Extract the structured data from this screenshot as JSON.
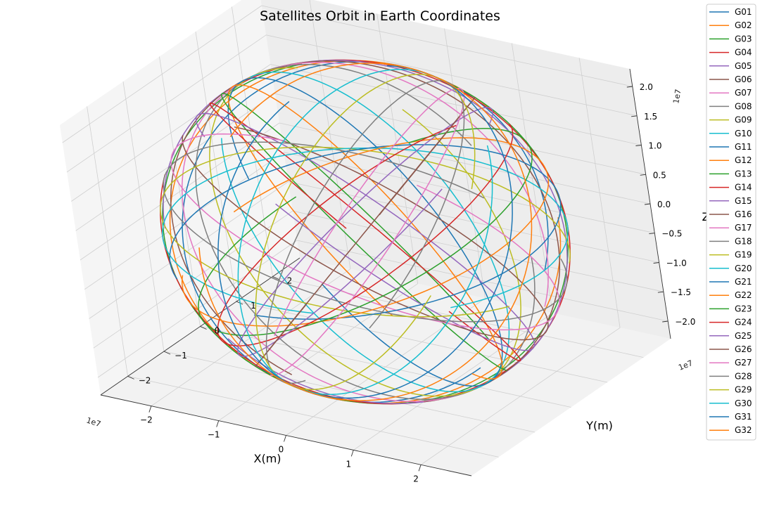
{
  "chart_data": {
    "type": "line",
    "projection": "3d",
    "title": "Satellites Orbit in Earth Coordinates",
    "xlabel": "X(m)",
    "ylabel": "Y(m)",
    "zlabel": "Z(m)",
    "x_multiplier": "1e7",
    "y_multiplier": "1e7",
    "z_multiplier": "1e7",
    "xlim": [
      -2.75,
      2.75
    ],
    "ylim": [
      -2.75,
      2.75
    ],
    "zlim": [
      -2.3,
      2.3
    ],
    "x_ticks": [
      "−2",
      "−1",
      "0",
      "1",
      "2"
    ],
    "x_tick_values": [
      -2,
      -1,
      0,
      1,
      2
    ],
    "y_ticks": [
      "−2",
      "−1",
      "0",
      "1",
      "2"
    ],
    "y_tick_values": [
      -2,
      -1,
      0,
      1,
      2
    ],
    "z_ticks": [
      "−2.0",
      "−1.5",
      "−1.0",
      "−0.5",
      "0.0",
      "0.5",
      "1.0",
      "1.5",
      "2.0"
    ],
    "z_tick_values": [
      -2.0,
      -1.5,
      -1.0,
      -0.5,
      0.0,
      0.5,
      1.0,
      1.5,
      2.0
    ],
    "grid": true,
    "legend_position": "right",
    "orbit_radius": 2.66,
    "series": [
      {
        "name": "G01",
        "color": "#1f77b4",
        "inclination": 55,
        "raan": 0
      },
      {
        "name": "G02",
        "color": "#ff7f0e",
        "inclination": 55,
        "raan": 11.25
      },
      {
        "name": "G03",
        "color": "#2ca02c",
        "inclination": 55,
        "raan": 22.5
      },
      {
        "name": "G04",
        "color": "#d62728",
        "inclination": 55,
        "raan": 33.75
      },
      {
        "name": "G05",
        "color": "#9467bd",
        "inclination": 55,
        "raan": 45
      },
      {
        "name": "G06",
        "color": "#8c564b",
        "inclination": 55,
        "raan": 56.25
      },
      {
        "name": "G07",
        "color": "#e377c2",
        "inclination": 55,
        "raan": 67.5
      },
      {
        "name": "G08",
        "color": "#7f7f7f",
        "inclination": 55,
        "raan": 78.75
      },
      {
        "name": "G09",
        "color": "#bcbd22",
        "inclination": 55,
        "raan": 90
      },
      {
        "name": "G10",
        "color": "#17becf",
        "inclination": 55,
        "raan": 101.25
      },
      {
        "name": "G11",
        "color": "#1f77b4",
        "inclination": 55,
        "raan": 112.5
      },
      {
        "name": "G12",
        "color": "#ff7f0e",
        "inclination": 55,
        "raan": 123.75
      },
      {
        "name": "G13",
        "color": "#2ca02c",
        "inclination": 55,
        "raan": 135
      },
      {
        "name": "G14",
        "color": "#d62728",
        "inclination": 55,
        "raan": 146.25
      },
      {
        "name": "G15",
        "color": "#9467bd",
        "inclination": 55,
        "raan": 157.5
      },
      {
        "name": "G16",
        "color": "#8c564b",
        "inclination": 55,
        "raan": 168.75
      },
      {
        "name": "G17",
        "color": "#e377c2",
        "inclination": 55,
        "raan": 180
      },
      {
        "name": "G18",
        "color": "#7f7f7f",
        "inclination": 55,
        "raan": 191.25
      },
      {
        "name": "G19",
        "color": "#bcbd22",
        "inclination": 55,
        "raan": 202.5
      },
      {
        "name": "G20",
        "color": "#17becf",
        "inclination": 55,
        "raan": 213.75
      },
      {
        "name": "G21",
        "color": "#1f77b4",
        "inclination": 55,
        "raan": 225
      },
      {
        "name": "G22",
        "color": "#ff7f0e",
        "inclination": 55,
        "raan": 236.25
      },
      {
        "name": "G23",
        "color": "#2ca02c",
        "inclination": 55,
        "raan": 247.5
      },
      {
        "name": "G24",
        "color": "#d62728",
        "inclination": 55,
        "raan": 258.75
      },
      {
        "name": "G25",
        "color": "#9467bd",
        "inclination": 55,
        "raan": 270
      },
      {
        "name": "G26",
        "color": "#8c564b",
        "inclination": 55,
        "raan": 281.25
      },
      {
        "name": "G27",
        "color": "#e377c2",
        "inclination": 55,
        "raan": 292.5
      },
      {
        "name": "G28",
        "color": "#7f7f7f",
        "inclination": 55,
        "raan": 303.75
      },
      {
        "name": "G29",
        "color": "#bcbd22",
        "inclination": 55,
        "raan": 315
      },
      {
        "name": "G30",
        "color": "#17becf",
        "inclination": 55,
        "raan": 326.25
      },
      {
        "name": "G31",
        "color": "#1f77b4",
        "inclination": 55,
        "raan": 337.5
      },
      {
        "name": "G32",
        "color": "#ff7f0e",
        "inclination": 55,
        "raan": 348.75
      }
    ]
  }
}
